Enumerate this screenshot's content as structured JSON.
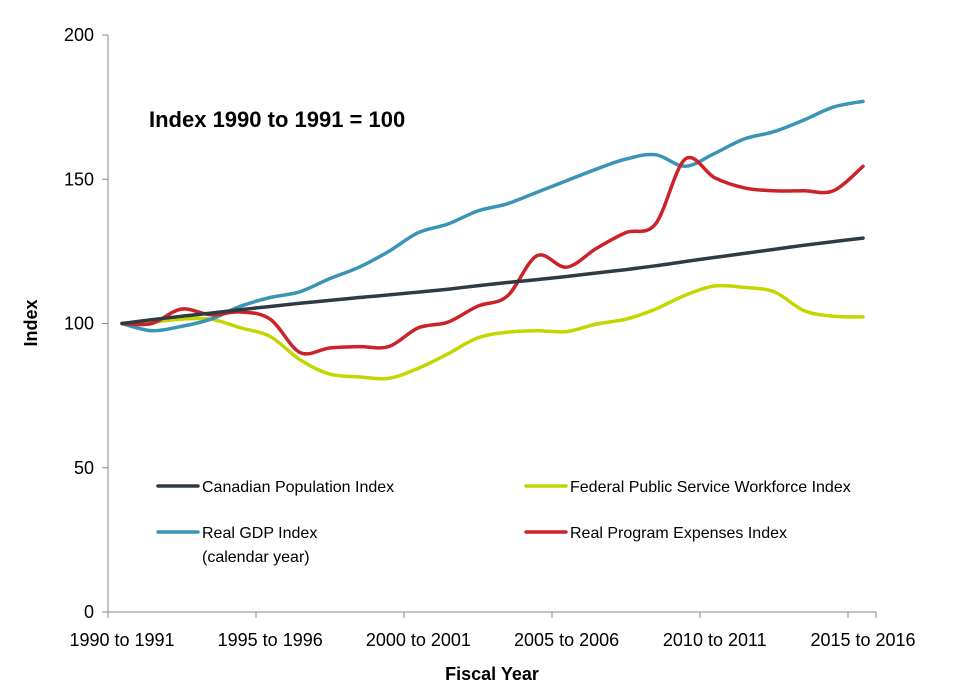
{
  "chart_data": {
    "type": "line",
    "title": "",
    "annotation": "Index 1990 to 1991 = 100",
    "xlabel": "Fiscal Year",
    "ylabel": "Index",
    "ylim": [
      0,
      200
    ],
    "yticks": [
      "0",
      "50",
      "100",
      "150",
      "200"
    ],
    "xtick_labels": [
      "1990 to 1991",
      "1995 to 1996",
      "2000 to 2001",
      "2005 to 2006",
      "2010 to 2011",
      "2015 to 2016"
    ],
    "x": [
      1990,
      1991,
      1992,
      1993,
      1994,
      1995,
      1996,
      1997,
      1998,
      1999,
      2000,
      2001,
      2002,
      2003,
      2004,
      2005,
      2006,
      2007,
      2008,
      2009,
      2010,
      2011,
      2012,
      2013,
      2014,
      2015
    ],
    "series": [
      {
        "name": "Canadian Population Index",
        "color": "#2e3b44",
        "values": [
          100,
          101.3,
          102.5,
          103.6,
          104.8,
          105.9,
          107,
          108,
          109,
          109.9,
          110.9,
          111.9,
          113.1,
          114.2,
          115.2,
          116.3,
          117.5,
          118.7,
          120,
          121.5,
          122.9,
          124.3,
          125.7,
          127.1,
          128.4,
          129.6
        ]
      },
      {
        "name": "Federal Public Service Workforce Index",
        "color": "#c4d600",
        "values": [
          100,
          100.5,
          101.5,
          101.5,
          98.5,
          95.5,
          87.5,
          82.5,
          81.5,
          81,
          84.5,
          89.5,
          95,
          97,
          97.5,
          97.2,
          99.8,
          101.5,
          105,
          109.8,
          113,
          112.5,
          111,
          104.5,
          102.5,
          102.3
        ]
      },
      {
        "name": "Real GDP Index",
        "name_line2": "(calendar year)",
        "color": "#3a94b6",
        "values": [
          100,
          97.5,
          99,
          101.5,
          106,
          109,
          111,
          115.5,
          119.5,
          125,
          131.5,
          134.5,
          139,
          141.5,
          145.5,
          149.5,
          153.5,
          157,
          158.5,
          154.5,
          159,
          164,
          166.5,
          170.5,
          175,
          177
        ]
      },
      {
        "name": "Real Program Expenses Index",
        "color": "#cc2229",
        "values": [
          100,
          100,
          105,
          103,
          104,
          101.5,
          90,
          91.5,
          92,
          92,
          98.5,
          100.5,
          106,
          109.5,
          123.5,
          119.5,
          126,
          131.5,
          134.5,
          157,
          150.5,
          147,
          146,
          146,
          146,
          154.5
        ]
      }
    ],
    "legend_position": "bottom-inside"
  }
}
